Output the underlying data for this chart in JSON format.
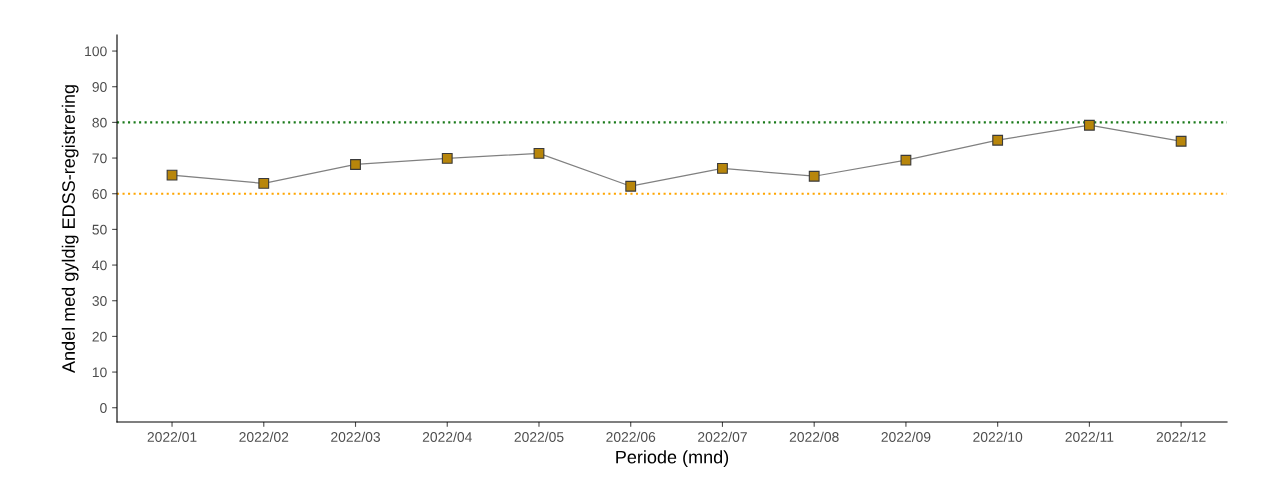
{
  "chart_data": {
    "type": "line",
    "xlabel": "Periode (mnd)",
    "ylabel": "Andel med gyldig EDSS-registrering",
    "categories": [
      "2022/01",
      "2022/02",
      "2022/03",
      "2022/04",
      "2022/05",
      "2022/06",
      "2022/07",
      "2022/08",
      "2022/09",
      "2022/10",
      "2022/11",
      "2022/12"
    ],
    "series": [
      {
        "color": "#b8860b",
        "values": [
          65.2,
          62.9,
          68.2,
          69.9,
          71.3,
          62.1,
          67.1,
          64.9,
          69.4,
          75.0,
          79.2,
          74.7
        ]
      }
    ],
    "ylim": [
      -4,
      104.5
    ],
    "yticks": [
      0,
      10,
      20,
      30,
      40,
      50,
      60,
      70,
      80,
      90,
      100
    ],
    "ref_lines": [
      {
        "axis": "y",
        "value": 80,
        "color": "#1a7a1a",
        "line_style": "dotted"
      },
      {
        "axis": "y",
        "value": 60,
        "color": "#ffa500",
        "line_style": "dotted"
      }
    ],
    "grid": false,
    "legend": false,
    "marker": "square",
    "line_style": "solid"
  }
}
